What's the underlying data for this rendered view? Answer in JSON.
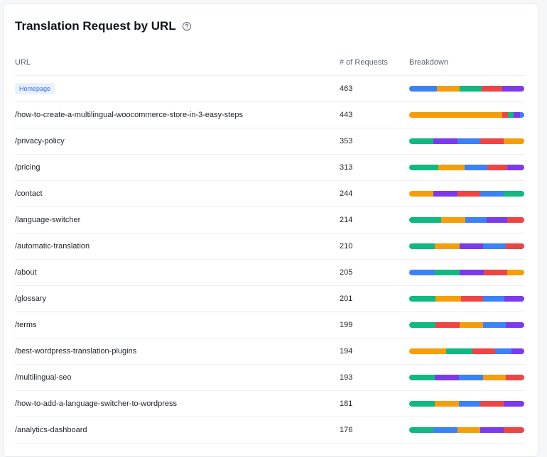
{
  "title": "Translation Request by URL",
  "colors": {
    "blue": "#3b82f6",
    "orange": "#f59e0b",
    "green": "#10b981",
    "red": "#ef4444",
    "purple": "#7c3aed"
  },
  "table": {
    "headers": {
      "url": "URL",
      "requests": "# of Requests",
      "breakdown": "Breakdown"
    },
    "rows": [
      {
        "url": "Homepage",
        "badge": true,
        "requests": "463",
        "breakdown": [
          [
            "blue",
            0.24
          ],
          [
            "orange",
            0.2
          ],
          [
            "green",
            0.19
          ],
          [
            "red",
            0.18
          ],
          [
            "purple",
            0.19
          ]
        ]
      },
      {
        "url": "/how-to-create-a-multilingual-woocommerce-store-in-3-easy-steps",
        "requests": "443",
        "breakdown": [
          [
            "orange",
            0.81
          ],
          [
            "red",
            0.05
          ],
          [
            "green",
            0.05
          ],
          [
            "purple",
            0.05
          ],
          [
            "blue",
            0.04
          ]
        ]
      },
      {
        "url": "/privacy-policy",
        "requests": "353",
        "breakdown": [
          [
            "green",
            0.21
          ],
          [
            "purple",
            0.21
          ],
          [
            "blue",
            0.2
          ],
          [
            "red",
            0.2
          ],
          [
            "orange",
            0.18
          ]
        ]
      },
      {
        "url": "/pricing",
        "requests": "313",
        "breakdown": [
          [
            "green",
            0.25
          ],
          [
            "orange",
            0.23
          ],
          [
            "blue",
            0.2
          ],
          [
            "red",
            0.17
          ],
          [
            "purple",
            0.15
          ]
        ]
      },
      {
        "url": "/contact",
        "requests": "244",
        "breakdown": [
          [
            "orange",
            0.21
          ],
          [
            "purple",
            0.21
          ],
          [
            "red",
            0.2
          ],
          [
            "blue",
            0.2
          ],
          [
            "green",
            0.18
          ]
        ]
      },
      {
        "url": "/language-switcher",
        "requests": "214",
        "breakdown": [
          [
            "green",
            0.28
          ],
          [
            "orange",
            0.21
          ],
          [
            "blue",
            0.18
          ],
          [
            "purple",
            0.18
          ],
          [
            "red",
            0.15
          ]
        ]
      },
      {
        "url": "/automatic-translation",
        "requests": "210",
        "breakdown": [
          [
            "green",
            0.22
          ],
          [
            "orange",
            0.22
          ],
          [
            "purple",
            0.2
          ],
          [
            "blue",
            0.2
          ],
          [
            "red",
            0.16
          ]
        ]
      },
      {
        "url": "/about",
        "requests": "205",
        "breakdown": [
          [
            "blue",
            0.22
          ],
          [
            "green",
            0.22
          ],
          [
            "purple",
            0.21
          ],
          [
            "red",
            0.2
          ],
          [
            "orange",
            0.15
          ]
        ]
      },
      {
        "url": "/glossary",
        "requests": "201",
        "breakdown": [
          [
            "green",
            0.23
          ],
          [
            "orange",
            0.22
          ],
          [
            "red",
            0.19
          ],
          [
            "blue",
            0.19
          ],
          [
            "purple",
            0.17
          ]
        ]
      },
      {
        "url": "/terms",
        "requests": "199",
        "breakdown": [
          [
            "green",
            0.23
          ],
          [
            "red",
            0.21
          ],
          [
            "orange",
            0.2
          ],
          [
            "blue",
            0.2
          ],
          [
            "purple",
            0.16
          ]
        ]
      },
      {
        "url": "/best-wordpress-translation-plugins",
        "requests": "194",
        "breakdown": [
          [
            "orange",
            0.32
          ],
          [
            "green",
            0.23
          ],
          [
            "red",
            0.2
          ],
          [
            "blue",
            0.14
          ],
          [
            "purple",
            0.11
          ]
        ]
      },
      {
        "url": "/multilingual-seo",
        "requests": "193",
        "breakdown": [
          [
            "green",
            0.22
          ],
          [
            "purple",
            0.21
          ],
          [
            "blue",
            0.21
          ],
          [
            "orange",
            0.2
          ],
          [
            "red",
            0.16
          ]
        ]
      },
      {
        "url": "/how-to-add-a-language-switcher-to-wordpress",
        "requests": "181",
        "breakdown": [
          [
            "green",
            0.22
          ],
          [
            "orange",
            0.21
          ],
          [
            "blue",
            0.19
          ],
          [
            "red",
            0.2
          ],
          [
            "purple",
            0.18
          ]
        ]
      },
      {
        "url": "/analytics-dashboard",
        "requests": "176",
        "breakdown": [
          [
            "green",
            0.21
          ],
          [
            "blue",
            0.21
          ],
          [
            "orange",
            0.2
          ],
          [
            "purple",
            0.2
          ],
          [
            "red",
            0.18
          ]
        ]
      }
    ]
  }
}
